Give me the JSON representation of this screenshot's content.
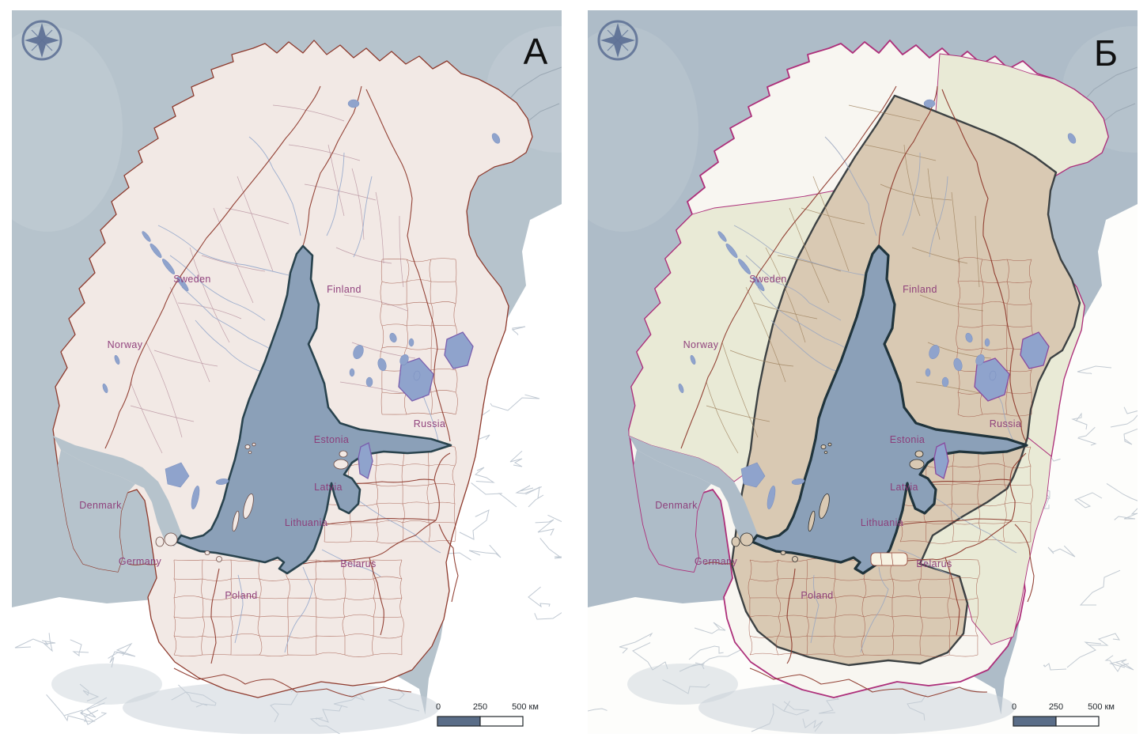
{
  "figure": {
    "panels": [
      {
        "id": "A",
        "letter": "А",
        "country_labels": [
          "Sweden",
          "Finland",
          "Norway",
          "Russia",
          "Estonia",
          "Latvia",
          "Lithuania",
          "Belarus",
          "Denmark",
          "Germany",
          "Poland"
        ],
        "scale_bar": {
          "ticks": [
            "0",
            "250",
            "500 км"
          ]
        },
        "theme": {
          "sea": "#b6c3cc",
          "sea_light": "#c3ced6",
          "far_land": "#ffffff",
          "far_line": "#bfc8d2",
          "land": "#f2e9e5",
          "coast": "#8e3a2d",
          "coast_width": 1.3,
          "admin": "#b893a0",
          "cell": "#9a4a3a",
          "river": "#93a7cb",
          "lake_fill": "#8fa3cc",
          "lake_stroke": "#7a5fae",
          "baltic_fill": "#8ba0b8",
          "baltic_stroke": "#29434e",
          "baltic_width": 2.6,
          "island": "#f2e9e5",
          "island_stroke": "#6b4a43",
          "border": "#8e3a2d",
          "label": "#8c3a78",
          "compass": "#5f7296",
          "scale_dark": "#5a6d88",
          "basin_fill": "",
          "basin_stroke": "",
          "green_fill": "",
          "green_stroke": ""
        }
      },
      {
        "id": "Б",
        "letter": "Б",
        "country_labels": [
          "Sweden",
          "Finland",
          "Norway",
          "Russia",
          "Estonia",
          "Latvia",
          "Lithuania",
          "Belarus",
          "Denmark",
          "Germany",
          "Poland"
        ],
        "scale_bar": {
          "ticks": [
            "0",
            "250",
            "500 км"
          ]
        },
        "theme": {
          "sea": "#aebcc8",
          "sea_light": "#bcc7d0",
          "far_land": "#fdfdfb",
          "far_line": "#c2cad2",
          "land": "#f8f6f1",
          "coast": "#ad2f7a",
          "coast_width": 1.8,
          "admin": "#a08460",
          "cell": "#9a4a3a",
          "river": "#9ba7c0",
          "lake_fill": "#8fa3cc",
          "lake_stroke": "#8a4a9e",
          "baltic_fill": "#8ba0b8",
          "baltic_stroke": "#20343c",
          "baltic_width": 3.2,
          "island": "#d9c9b3",
          "island_stroke": "#2b2b2b",
          "border": "#8e3a2d",
          "label": "#8c3a78",
          "compass": "#5f7296",
          "scale_dark": "#5a6d88",
          "basin_fill": "#d9c9b3",
          "basin_stroke": "#3d4244",
          "green_fill": "#e9ead6",
          "green_stroke": "#ad2f7a"
        }
      }
    ]
  }
}
